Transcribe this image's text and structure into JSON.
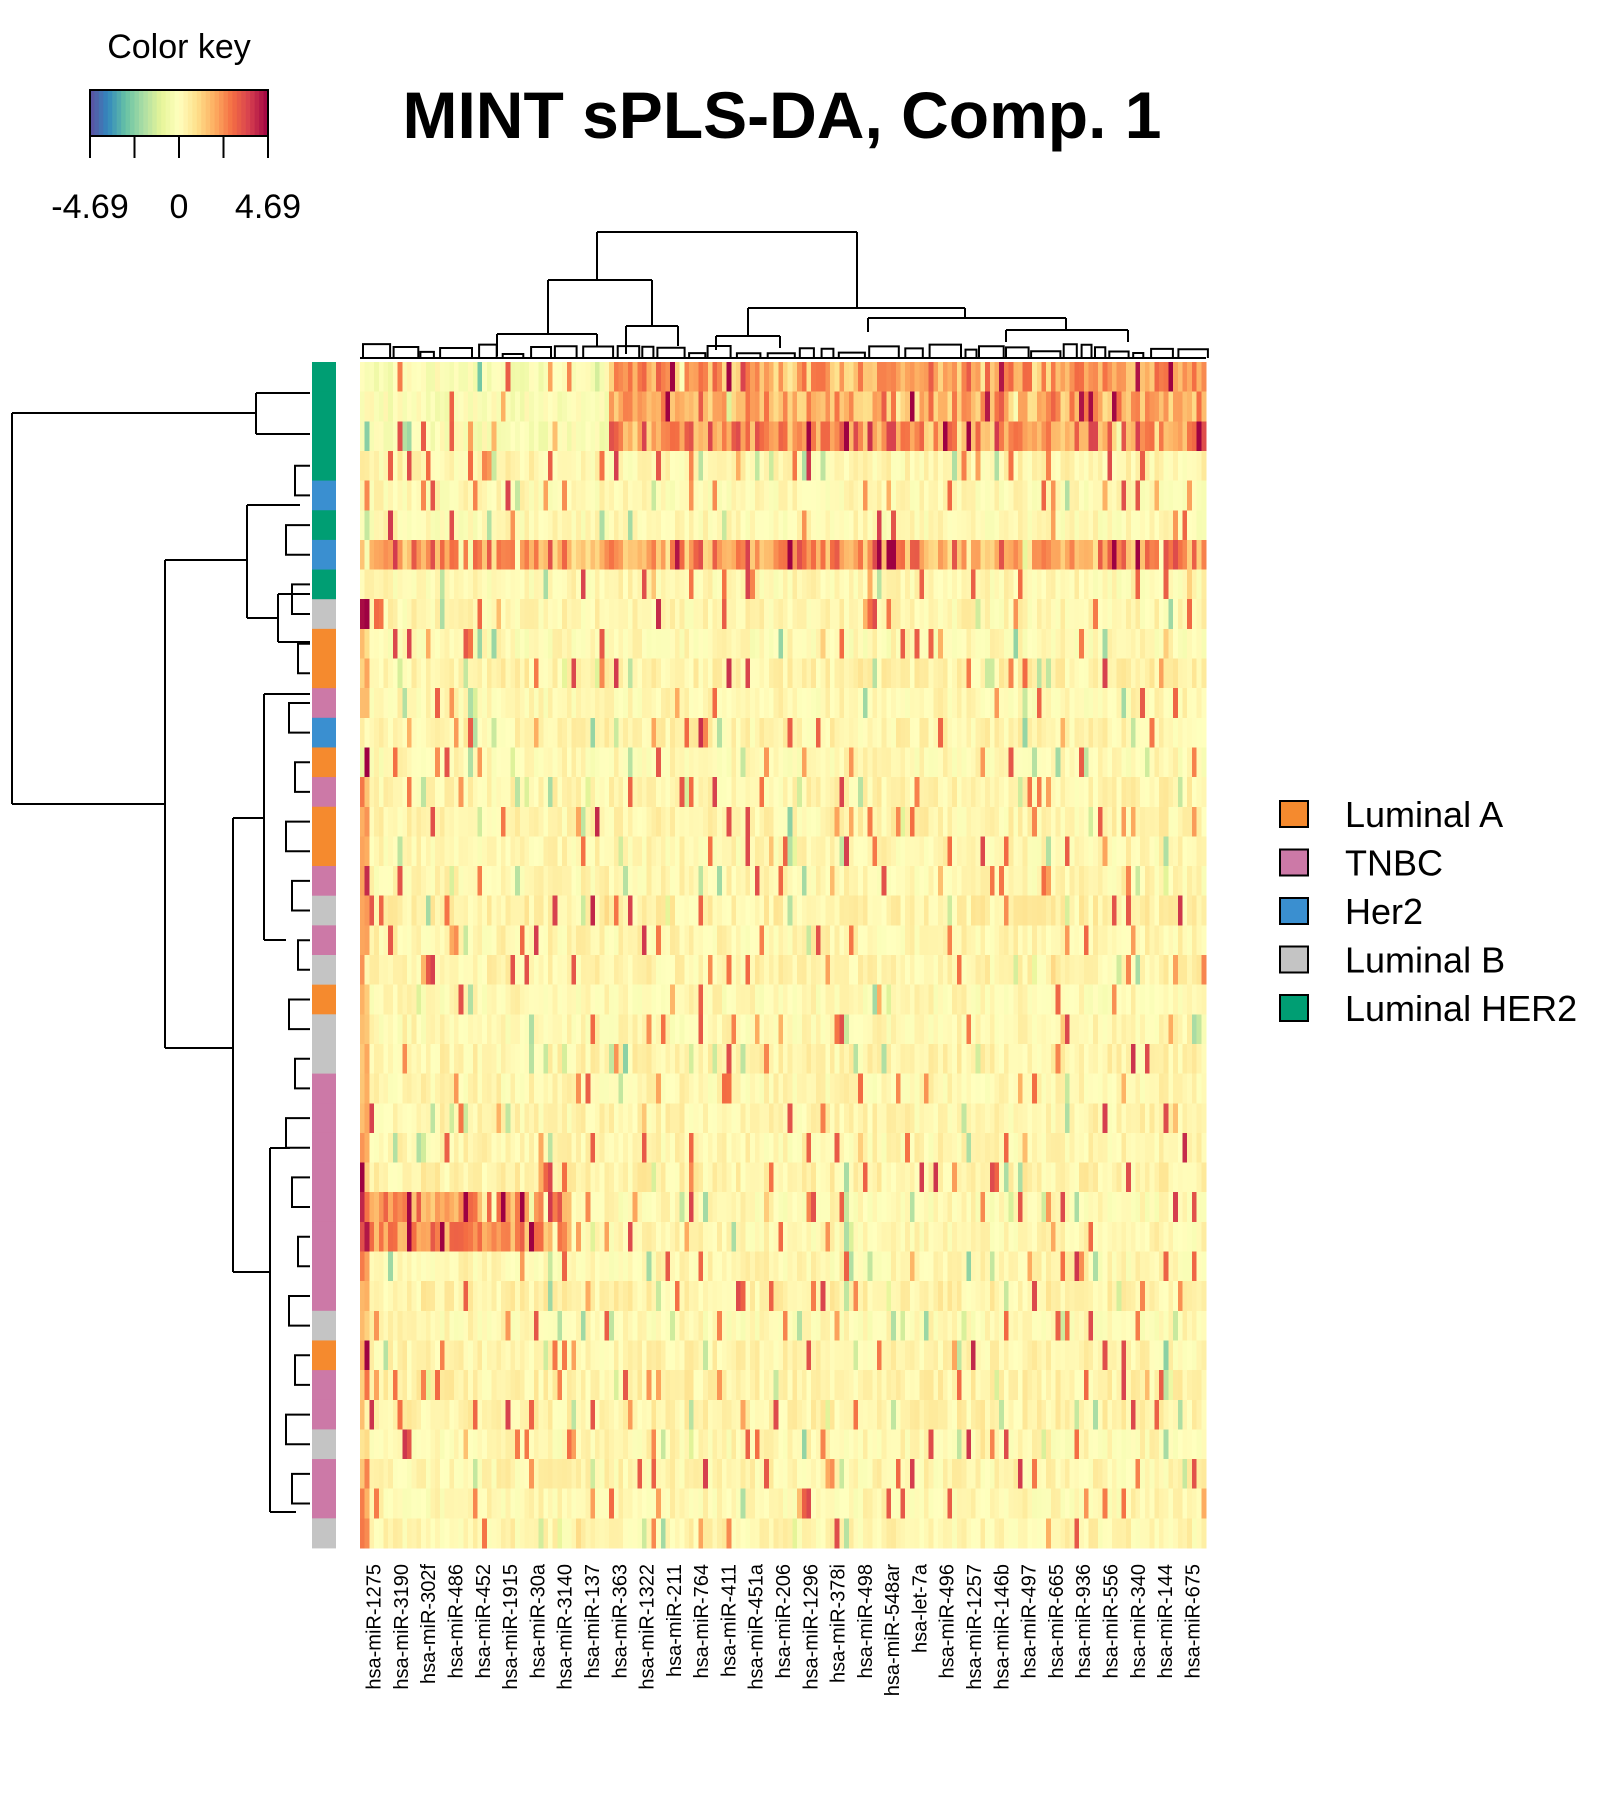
{
  "chart_data": {
    "type": "heatmap",
    "title": "MINT sPLS-DA, Comp. 1",
    "color_key": {
      "title": "Color key",
      "min": -4.69,
      "mid": 0,
      "max": 4.69,
      "tick_labels": [
        "-4.69",
        "0",
        "4.69"
      ],
      "palette": [
        "#5e4fa2",
        "#3288bd",
        "#66c2a5",
        "#abdda4",
        "#e6f598",
        "#ffffbf",
        "#fee08b",
        "#fdae61",
        "#f46d43",
        "#d53e4f",
        "#9e0142"
      ]
    },
    "x_tick_labels": [
      "hsa-miR-1275",
      "hsa-miR-3190",
      "hsa-miR-302f",
      "hsa-miR-486",
      "hsa-miR-452",
      "hsa-miR-1915",
      "hsa-miR-30a",
      "hsa-miR-3140",
      "hsa-miR-137",
      "hsa-miR-363",
      "hsa-miR-1322",
      "hsa-miR-211",
      "hsa-miR-764",
      "hsa-miR-411",
      "hsa-miR-451a",
      "hsa-miR-206",
      "hsa-miR-1296",
      "hsa-miR-378i",
      "hsa-miR-498",
      "hsa-miR-548ar",
      "hsa-let-7a",
      "hsa-miR-496",
      "hsa-miR-1257",
      "hsa-miR-146b",
      "hsa-miR-497",
      "hsa-miR-665",
      "hsa-miR-936",
      "hsa-miR-556",
      "hsa-miR-340",
      "hsa-miR-144",
      "hsa-miR-675"
    ],
    "sample_groups": [
      "Luminal HER2",
      "Luminal HER2",
      "Luminal HER2",
      "Luminal HER2",
      "Her2",
      "Luminal HER2",
      "Her2",
      "Luminal HER2",
      "Luminal B",
      "Luminal A",
      "Luminal A",
      "TNBC",
      "Her2",
      "Luminal A",
      "TNBC",
      "Luminal A",
      "Luminal A",
      "TNBC",
      "Luminal B",
      "TNBC",
      "Luminal B",
      "Luminal A",
      "Luminal B",
      "Luminal B",
      "TNBC",
      "TNBC",
      "TNBC",
      "TNBC",
      "TNBC",
      "TNBC",
      "TNBC",
      "TNBC",
      "Luminal B",
      "Luminal A",
      "TNBC",
      "TNBC",
      "Luminal B",
      "TNBC",
      "TNBC",
      "Luminal B"
    ],
    "legend": [
      {
        "label": "Luminal A",
        "color": "#f58a2e"
      },
      {
        "label": "TNBC",
        "color": "#cc79a7"
      },
      {
        "label": "Her2",
        "color": "#3a8fd0"
      },
      {
        "label": "Luminal B",
        "color": "#c4c4c4"
      },
      {
        "label": "Luminal HER2",
        "color": "#009e73"
      }
    ],
    "legend_position": "right",
    "row_dendrogram": "left",
    "column_dendrogram": "top"
  }
}
